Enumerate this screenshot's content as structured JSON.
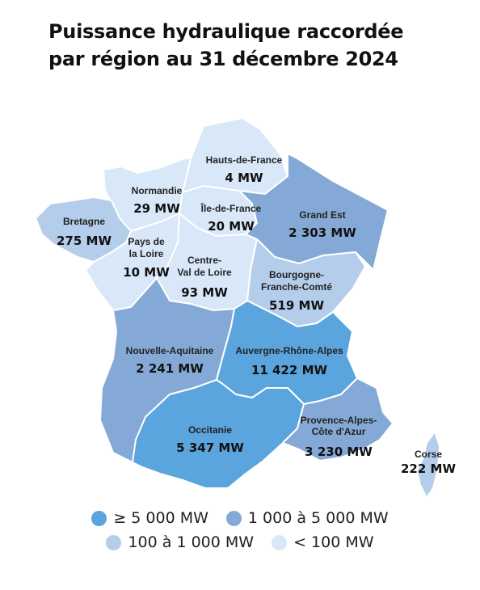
{
  "title": {
    "line1": "Puissance hydraulique raccordée",
    "line2": "par région au 31 décembre 2024"
  },
  "colors": {
    "cat_high": "#5aa5dd",
    "cat_mid": "#85a9d6",
    "cat_low": "#b4cdeb",
    "cat_min": "#d8e8f8"
  },
  "regions": [
    {
      "id": "hauts-de-france",
      "name": "Hauts-de-France",
      "value": "4 MW",
      "mw": 4,
      "category": "cat_min"
    },
    {
      "id": "normandie",
      "name": "Normandie",
      "value": "29 MW",
      "mw": 29,
      "category": "cat_min"
    },
    {
      "id": "ile-de-france",
      "name": "Île-de-France",
      "value": "20 MW",
      "mw": 20,
      "category": "cat_min"
    },
    {
      "id": "grand-est",
      "name": "Grand Est",
      "value": "2 303 MW",
      "mw": 2303,
      "category": "cat_mid"
    },
    {
      "id": "bretagne",
      "name": "Bretagne",
      "value": "275 MW",
      "mw": 275,
      "category": "cat_low"
    },
    {
      "id": "pays-de-la-loire",
      "name": "Pays de la Loire",
      "name_lines": [
        "Pays de",
        "la Loire"
      ],
      "value": "10 MW",
      "mw": 10,
      "category": "cat_min"
    },
    {
      "id": "centre-val-de-loire",
      "name": "Centre-Val de Loire",
      "name_lines": [
        "Centre-",
        "Val de Loire"
      ],
      "value": "93 MW",
      "mw": 93,
      "category": "cat_min"
    },
    {
      "id": "bourgogne-franche-comte",
      "name": "Bourgogne-Franche-Comté",
      "name_lines": [
        "Bourgogne-",
        "Franche-Comté"
      ],
      "value": "519 MW",
      "mw": 519,
      "category": "cat_low"
    },
    {
      "id": "nouvelle-aquitaine",
      "name": "Nouvelle-Aquitaine",
      "value": "2 241 MW",
      "mw": 2241,
      "category": "cat_mid"
    },
    {
      "id": "auvergne-rhone-alpes",
      "name": "Auvergne-Rhône-Alpes",
      "value": "11 422 MW",
      "mw": 11422,
      "category": "cat_high"
    },
    {
      "id": "occitanie",
      "name": "Occitanie",
      "value": "5 347 MW",
      "mw": 5347,
      "category": "cat_high"
    },
    {
      "id": "provence-alpes-cote-d-azur",
      "name": "Provence-Alpes-Côte d'Azur",
      "name_lines": [
        "Provence-Alpes-",
        "Côte d'Azur"
      ],
      "value": "3 230 MW",
      "mw": 3230,
      "category": "cat_mid"
    },
    {
      "id": "corse",
      "name": "Corse",
      "value": "222 MW",
      "mw": 222,
      "category": "cat_low"
    }
  ],
  "legend": [
    {
      "label": "≥ 5 000 MW",
      "category": "cat_high"
    },
    {
      "label": "1 000 à 5 000 MW",
      "category": "cat_mid"
    },
    {
      "label": "100 à 1 000 MW",
      "category": "cat_low"
    },
    {
      "label": "< 100 MW",
      "category": "cat_min"
    }
  ]
}
